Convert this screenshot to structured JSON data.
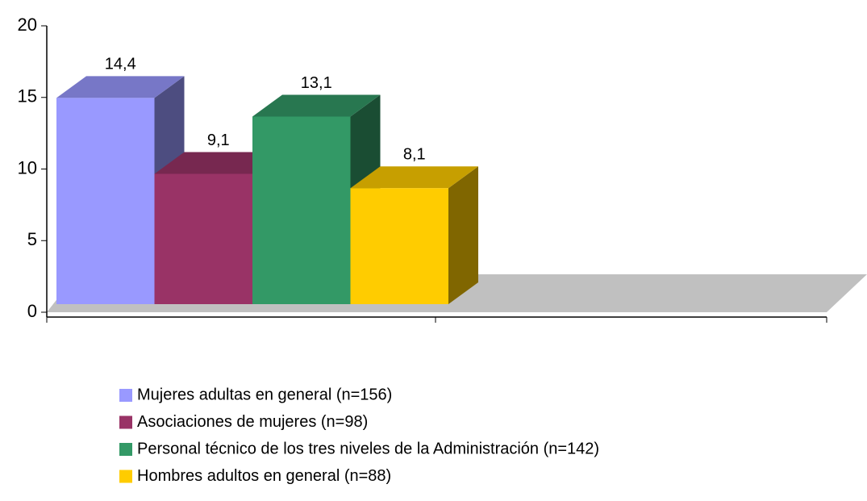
{
  "chart_data": {
    "type": "bar3d",
    "categories": [
      null
    ],
    "series": [
      {
        "name": "Mujeres adultas en general (n=156)",
        "color": "#9999ff",
        "values": [
          14.4
        ],
        "value_labels": [
          "14,4"
        ]
      },
      {
        "name": "Asociaciones de mujeres (n=98)",
        "color": "#993366",
        "values": [
          9.1
        ],
        "value_labels": [
          "9,1"
        ]
      },
      {
        "name": "Personal técnico de los tres niveles de la Administración (n=142)",
        "color": "#339966",
        "values": [
          13.1
        ],
        "value_labels": [
          "13,1"
        ]
      },
      {
        "name": "Hombres adultos en general (n=88)",
        "color": "#ffcc00",
        "values": [
          8.1
        ],
        "value_labels": [
          "8,1"
        ]
      }
    ],
    "ylim": [
      0,
      20
    ],
    "yticks": [
      0,
      5,
      10,
      15,
      20
    ],
    "grid": false,
    "legend": "bottom"
  }
}
